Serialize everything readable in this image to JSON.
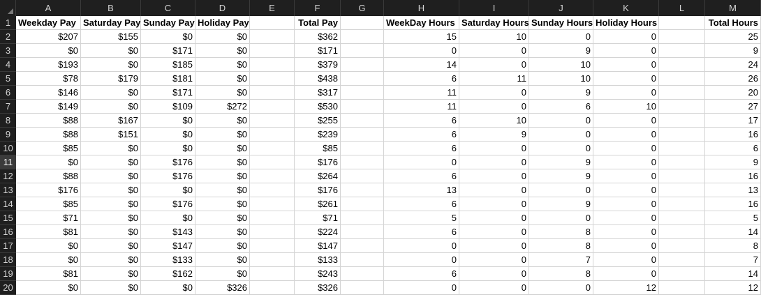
{
  "columns": [
    "A",
    "B",
    "C",
    "D",
    "E",
    "F",
    "G",
    "H",
    "I",
    "J",
    "K",
    "L",
    "M"
  ],
  "header_row": [
    "Weekday Pay",
    "Saturday Pay",
    "Sunday Pay",
    "Holiday Pay",
    "",
    "Total Pay",
    "",
    "WeekDay Hours",
    "Saturday Hours",
    "Sunday Hours",
    "Holiday Hours",
    "",
    "Total Hours"
  ],
  "row_numbers": [
    "1",
    "2",
    "3",
    "4",
    "5",
    "6",
    "7",
    "8",
    "9",
    "10",
    "11",
    "12",
    "13",
    "14",
    "15",
    "16",
    "17",
    "18",
    "19",
    "20"
  ],
  "active_row": "11",
  "data_rows": [
    [
      "$207",
      "$155",
      "$0",
      "$0",
      "",
      "$362",
      "",
      "15",
      "10",
      "0",
      "0",
      "",
      "25"
    ],
    [
      "$0",
      "$0",
      "$171",
      "$0",
      "",
      "$171",
      "",
      "0",
      "0",
      "9",
      "0",
      "",
      "9"
    ],
    [
      "$193",
      "$0",
      "$185",
      "$0",
      "",
      "$379",
      "",
      "14",
      "0",
      "10",
      "0",
      "",
      "24"
    ],
    [
      "$78",
      "$179",
      "$181",
      "$0",
      "",
      "$438",
      "",
      "6",
      "11",
      "10",
      "0",
      "",
      "26"
    ],
    [
      "$146",
      "$0",
      "$171",
      "$0",
      "",
      "$317",
      "",
      "11",
      "0",
      "9",
      "0",
      "",
      "20"
    ],
    [
      "$149",
      "$0",
      "$109",
      "$272",
      "",
      "$530",
      "",
      "11",
      "0",
      "6",
      "10",
      "",
      "27"
    ],
    [
      "$88",
      "$167",
      "$0",
      "$0",
      "",
      "$255",
      "",
      "6",
      "10",
      "0",
      "0",
      "",
      "17"
    ],
    [
      "$88",
      "$151",
      "$0",
      "$0",
      "",
      "$239",
      "",
      "6",
      "9",
      "0",
      "0",
      "",
      "16"
    ],
    [
      "$85",
      "$0",
      "$0",
      "$0",
      "",
      "$85",
      "",
      "6",
      "0",
      "0",
      "0",
      "",
      "6"
    ],
    [
      "$0",
      "$0",
      "$176",
      "$0",
      "",
      "$176",
      "",
      "0",
      "0",
      "9",
      "0",
      "",
      "9"
    ],
    [
      "$88",
      "$0",
      "$176",
      "$0",
      "",
      "$264",
      "",
      "6",
      "0",
      "9",
      "0",
      "",
      "16"
    ],
    [
      "$176",
      "$0",
      "$0",
      "$0",
      "",
      "$176",
      "",
      "13",
      "0",
      "0",
      "0",
      "",
      "13"
    ],
    [
      "$85",
      "$0",
      "$176",
      "$0",
      "",
      "$261",
      "",
      "6",
      "0",
      "9",
      "0",
      "",
      "16"
    ],
    [
      "$71",
      "$0",
      "$0",
      "$0",
      "",
      "$71",
      "",
      "5",
      "0",
      "0",
      "0",
      "",
      "5"
    ],
    [
      "$81",
      "$0",
      "$143",
      "$0",
      "",
      "$224",
      "",
      "6",
      "0",
      "8",
      "0",
      "",
      "14"
    ],
    [
      "$0",
      "$0",
      "$147",
      "$0",
      "",
      "$147",
      "",
      "0",
      "0",
      "8",
      "0",
      "",
      "8"
    ],
    [
      "$0",
      "$0",
      "$133",
      "$0",
      "",
      "$133",
      "",
      "0",
      "0",
      "7",
      "0",
      "",
      "7"
    ],
    [
      "$81",
      "$0",
      "$162",
      "$0",
      "",
      "$243",
      "",
      "6",
      "0",
      "8",
      "0",
      "",
      "14"
    ],
    [
      "$0",
      "$0",
      "$0",
      "$326",
      "",
      "$326",
      "",
      "0",
      "0",
      "0",
      "12",
      "",
      "12"
    ]
  ]
}
